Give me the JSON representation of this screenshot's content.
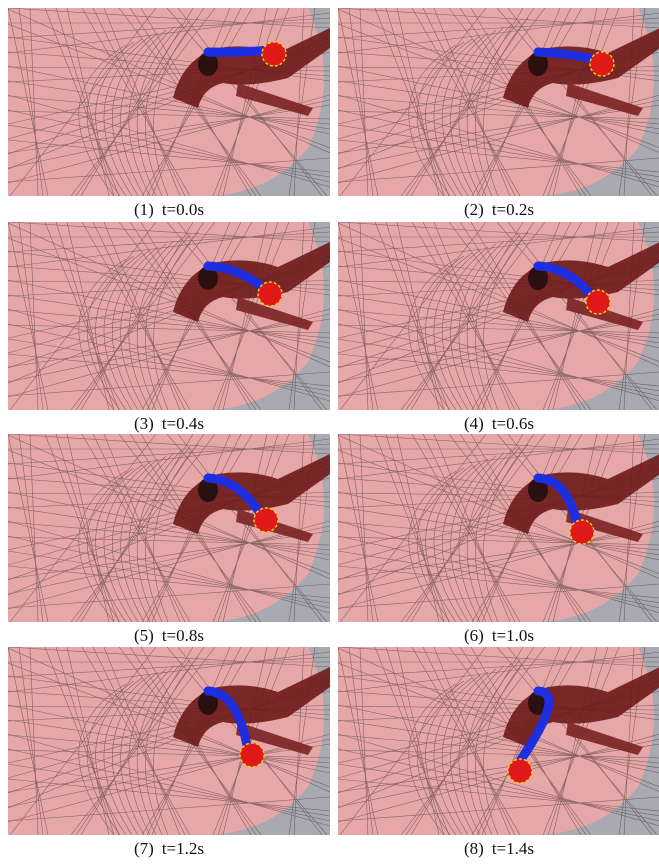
{
  "panels": [
    {
      "label": "(1)",
      "caption": "t=0.0s"
    },
    {
      "label": "(2)",
      "caption": "t=0.2s"
    },
    {
      "label": "(3)",
      "caption": "t=0.4s"
    },
    {
      "label": "(4)",
      "caption": "t=0.6s"
    },
    {
      "label": "(5)",
      "caption": "t=0.8s"
    },
    {
      "label": "(6)",
      "caption": "t=1.0s"
    },
    {
      "label": "(7)",
      "caption": "t=1.2s"
    },
    {
      "label": "(8)",
      "caption": "t=1.4s"
    }
  ]
}
